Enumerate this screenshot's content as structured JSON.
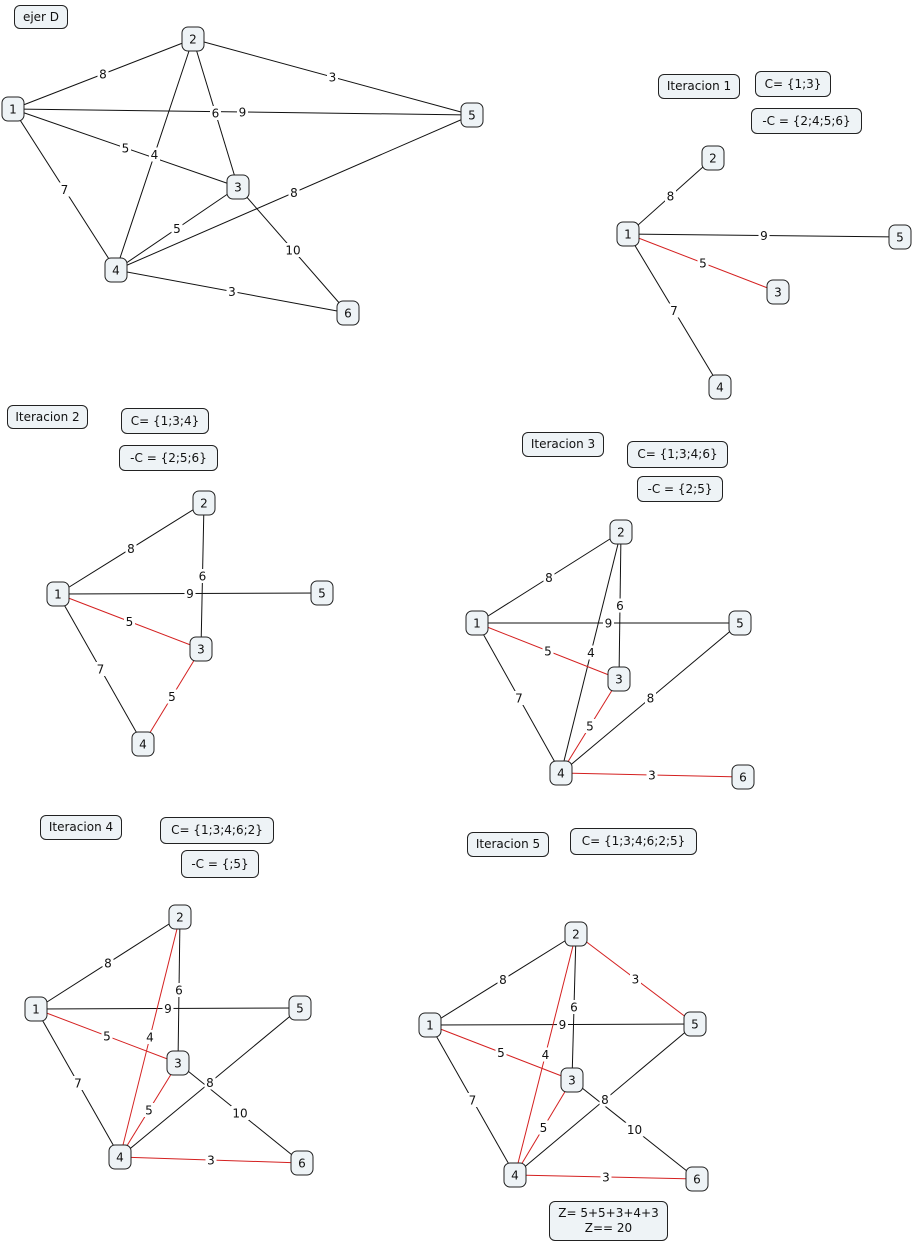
{
  "colors": {
    "node_fill": "#eef3f6",
    "edge": "#111111",
    "selected_edge": "#d42020"
  },
  "labels": {
    "title": "ejer D",
    "iter1": {
      "name": "Iteracion 1",
      "c": "C= {1;3}",
      "not_c": "-C = {2;4;5;6}"
    },
    "iter2": {
      "name": "Iteracion 2",
      "c": "C= {1;3;4}",
      "not_c": "-C = {2;5;6}"
    },
    "iter3": {
      "name": "Iteracion 3",
      "c": "C= {1;3;4;6}",
      "not_c": "-C = {2;5}"
    },
    "iter4": {
      "name": "Iteracion 4",
      "c": "C= {1;3;4;6;2}",
      "not_c": "-C = {;5}"
    },
    "iter5": {
      "name": "Iteracion 5",
      "c": "C= {1;3;4;6;2;5}"
    },
    "result": "Z= 5+5+3+4+3\nZ== 20"
  },
  "graphs": [
    {
      "id": "ejer-d",
      "nodes": [
        "1",
        "2",
        "3",
        "4",
        "5",
        "6"
      ],
      "edges": [
        [
          "1",
          "2",
          8,
          false
        ],
        [
          "2",
          "5",
          3,
          false
        ],
        [
          "1",
          "5",
          9,
          false
        ],
        [
          "2",
          "3",
          6,
          false
        ],
        [
          "2",
          "4",
          4,
          false
        ],
        [
          "1",
          "3",
          5,
          false
        ],
        [
          "1",
          "4",
          7,
          false
        ],
        [
          "3",
          "4",
          5,
          false
        ],
        [
          "4",
          "5",
          8,
          false
        ],
        [
          "3",
          "6",
          10,
          false
        ],
        [
          "4",
          "6",
          3,
          false
        ]
      ]
    },
    {
      "id": "iteracion-1",
      "nodes": [
        "1",
        "2",
        "3",
        "4",
        "5"
      ],
      "edges": [
        [
          "1",
          "2",
          8,
          false
        ],
        [
          "1",
          "5",
          9,
          false
        ],
        [
          "1",
          "3",
          5,
          true
        ],
        [
          "1",
          "4",
          7,
          false
        ]
      ]
    },
    {
      "id": "iteracion-2",
      "nodes": [
        "1",
        "2",
        "3",
        "4",
        "5"
      ],
      "edges": [
        [
          "1",
          "2",
          8,
          false
        ],
        [
          "1",
          "5",
          9,
          false
        ],
        [
          "2",
          "3",
          6,
          false
        ],
        [
          "1",
          "3",
          5,
          true
        ],
        [
          "1",
          "4",
          7,
          false
        ],
        [
          "3",
          "4",
          5,
          true
        ]
      ]
    },
    {
      "id": "iteracion-3",
      "nodes": [
        "1",
        "2",
        "3",
        "4",
        "5",
        "6"
      ],
      "edges": [
        [
          "1",
          "2",
          8,
          false
        ],
        [
          "1",
          "5",
          9,
          false
        ],
        [
          "2",
          "3",
          6,
          false
        ],
        [
          "2",
          "4",
          4,
          false
        ],
        [
          "1",
          "3",
          5,
          true
        ],
        [
          "1",
          "4",
          7,
          false
        ],
        [
          "3",
          "4",
          5,
          true
        ],
        [
          "4",
          "5",
          8,
          false
        ],
        [
          "4",
          "6",
          3,
          true
        ]
      ]
    },
    {
      "id": "iteracion-4",
      "nodes": [
        "1",
        "2",
        "3",
        "4",
        "5",
        "6"
      ],
      "edges": [
        [
          "1",
          "2",
          8,
          false
        ],
        [
          "1",
          "5",
          9,
          false
        ],
        [
          "2",
          "3",
          6,
          false
        ],
        [
          "2",
          "4",
          4,
          true
        ],
        [
          "1",
          "3",
          5,
          true
        ],
        [
          "1",
          "4",
          7,
          false
        ],
        [
          "3",
          "4",
          5,
          true
        ],
        [
          "4",
          "5",
          8,
          false
        ],
        [
          "3",
          "6",
          10,
          false
        ],
        [
          "4",
          "6",
          3,
          true
        ]
      ]
    },
    {
      "id": "iteracion-5",
      "nodes": [
        "1",
        "2",
        "3",
        "4",
        "5",
        "6"
      ],
      "edges": [
        [
          "1",
          "2",
          8,
          false
        ],
        [
          "2",
          "5",
          3,
          true
        ],
        [
          "1",
          "5",
          9,
          false
        ],
        [
          "2",
          "3",
          6,
          false
        ],
        [
          "2",
          "4",
          4,
          true
        ],
        [
          "1",
          "3",
          5,
          true
        ],
        [
          "1",
          "4",
          7,
          false
        ],
        [
          "3",
          "4",
          5,
          true
        ],
        [
          "4",
          "5",
          8,
          false
        ],
        [
          "3",
          "6",
          10,
          false
        ],
        [
          "4",
          "6",
          3,
          true
        ]
      ]
    }
  ]
}
